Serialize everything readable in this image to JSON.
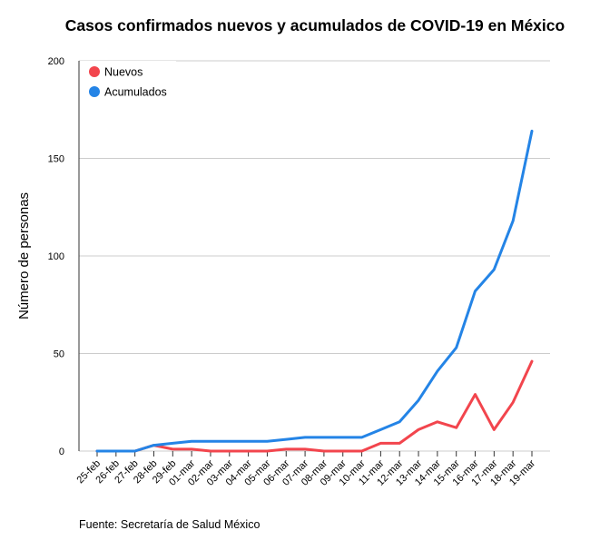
{
  "chart_data": {
    "type": "line",
    "title": "Casos confirmados nuevos y acumulados de COVID-19 en México",
    "xlabel": "",
    "ylabel": "Número de personas",
    "ylim": [
      0,
      200
    ],
    "yticks": [
      "0",
      "50",
      "100",
      "150",
      "200"
    ],
    "grid": true,
    "legend_position": "top-left",
    "categories": [
      "25-feb",
      "26-feb",
      "27-feb",
      "28-feb",
      "29-feb",
      "01-mar",
      "02-mar",
      "03-mar",
      "04-mar",
      "05-mar",
      "06-mar",
      "07-mar",
      "08-mar",
      "09-mar",
      "10-mar",
      "11-mar",
      "12-mar",
      "13-mar",
      "14-mar",
      "15-mar",
      "16-mar",
      "17-mar",
      "18-mar",
      "19-mar"
    ],
    "series": [
      {
        "name": "Nuevos",
        "color": "#f2454d",
        "values": [
          0,
          0,
          0,
          3,
          1,
          1,
          0,
          0,
          0,
          0,
          1,
          1,
          0,
          0,
          0,
          4,
          4,
          11,
          15,
          12,
          29,
          11,
          25,
          46
        ]
      },
      {
        "name": "Acumulados",
        "color": "#2484e6",
        "values": [
          0,
          0,
          0,
          3,
          4,
          5,
          5,
          5,
          5,
          5,
          6,
          7,
          7,
          7,
          7,
          11,
          15,
          26,
          41,
          53,
          82,
          93,
          118,
          164
        ]
      }
    ],
    "source": "Fuente: Secretaría de Salud México"
  }
}
